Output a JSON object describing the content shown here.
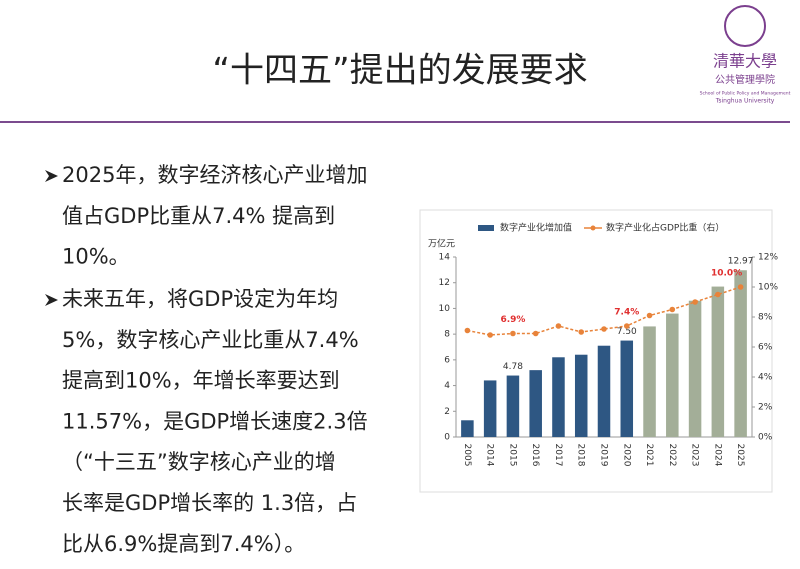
{
  "header": {
    "title": "“十四五”提出的发展要求",
    "logo": {
      "name": "清華大學",
      "school": "公共管理學院",
      "english_1": "School of Public Policy and Management",
      "english_2": "Tsinghua University"
    }
  },
  "bullets": [
    {
      "lines": [
        "2025年，数字经济核心产业增加",
        "值占GDP比重从7.4% 提高到",
        "10%。"
      ]
    },
    {
      "lines": [
        "未来五年，将GDP设定为年均",
        "5%，数字核心产业比重从7.4%",
        "提高到10%，年增长率要达到",
        "11.57%，是GDP增长速度2.3倍",
        "（“十三五”数字核心产业的增",
        "长率是GDP增长率的 1.3倍，占",
        "比从6.9%提高到7.4%）。"
      ]
    }
  ],
  "chart_data": {
    "type": "bar",
    "y_label": "万亿元",
    "categories": [
      "2005",
      "2014",
      "2015",
      "2016",
      "2017",
      "2018",
      "2019",
      "2020",
      "2021",
      "2022",
      "2023",
      "2024",
      "2025"
    ],
    "series": [
      {
        "name": "数字产业化增加值",
        "type": "bar",
        "color": "#2e5783",
        "colors": [
          "#2e5783",
          "#2e5783",
          "#2e5783",
          "#2e5783",
          "#2e5783",
          "#2e5783",
          "#2e5783",
          "#2e5783",
          "#a3ae98",
          "#a3ae98",
          "#a3ae98",
          "#a3ae98",
          "#a3ae98"
        ],
        "values": [
          1.3,
          4.4,
          4.78,
          5.2,
          6.2,
          6.4,
          7.1,
          7.5,
          8.6,
          9.6,
          10.6,
          11.7,
          12.97
        ],
        "value_labels": [
          null,
          null,
          "4.78",
          null,
          null,
          null,
          null,
          "7.50",
          null,
          null,
          null,
          null,
          "12.97"
        ]
      },
      {
        "name": "数字产业化占GDP比重（右）",
        "type": "line",
        "axis": "y2",
        "color": "#e8833a",
        "values": [
          7.1,
          6.8,
          6.9,
          6.9,
          7.4,
          7.0,
          7.2,
          7.4,
          8.1,
          8.5,
          9.0,
          9.5,
          10.0
        ],
        "value_labels": [
          null,
          null,
          "6.9%",
          null,
          null,
          null,
          null,
          "7.4%",
          null,
          null,
          null,
          null,
          "10.0%"
        ]
      }
    ],
    "ylim": [
      0,
      14
    ],
    "yticks": [
      0,
      2,
      4,
      6,
      8,
      10,
      12,
      14
    ],
    "y2lim": [
      0,
      12
    ],
    "y2ticks": [
      {
        "value": 0,
        "label": "0%"
      },
      {
        "value": 2,
        "label": "2%"
      },
      {
        "value": 4,
        "label": "4%"
      },
      {
        "value": 6,
        "label": "6%"
      },
      {
        "value": 8,
        "label": "8%"
      },
      {
        "value": 10,
        "label": "10%"
      },
      {
        "value": 12,
        "label": "12%"
      }
    ],
    "grid": false
  }
}
